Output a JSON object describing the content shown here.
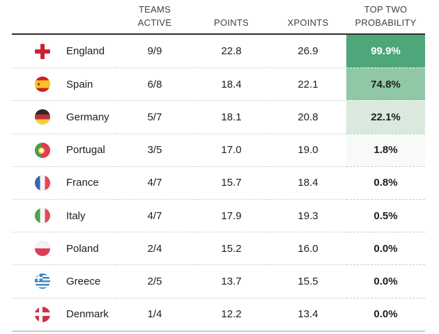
{
  "header": {
    "teams_active_line1": "TEAMS",
    "teams_active_line2": "ACTIVE",
    "points": "POINTS",
    "xpoints": "XPOINTS",
    "top_two_line1": "TOP TWO",
    "top_two_line2": "PROBABILITY"
  },
  "colors": {
    "header_rule": "#2d2d2d",
    "bottom_rule": "#c9c9c9",
    "row_separator": "#c8c8c8",
    "prob_scale_high": "#4da77a",
    "prob_scale_mid": "#90c7a4",
    "prob_scale_low": "#d9e9dd",
    "prob_scale_faint": "#f7faf7"
  },
  "chart_data": {
    "type": "table",
    "columns": [
      "",
      "TEAMS ACTIVE",
      "POINTS",
      "XPOINTS",
      "TOP TWO PROBABILITY"
    ],
    "rows": [
      {
        "country": "England",
        "flag": "england",
        "teams_active": "9/9",
        "points": "22.8",
        "xpoints": "26.9",
        "top_two_probability": "99.9%",
        "prob_bg": "#4da77a",
        "prob_fg": "#ffffff",
        "prob_sep": ""
      },
      {
        "country": "Spain",
        "flag": "spain",
        "teams_active": "6/8",
        "points": "18.4",
        "xpoints": "22.1",
        "top_two_probability": "74.8%",
        "prob_bg": "#90c7a4",
        "prob_fg": "#1d1d1d",
        "prob_sep": "rgba(255,255,255,0.85)"
      },
      {
        "country": "Germany",
        "flag": "germany",
        "teams_active": "5/7",
        "points": "18.1",
        "xpoints": "20.8",
        "top_two_probability": "22.1%",
        "prob_bg": "#d9e9dd",
        "prob_fg": "#1d1d1d",
        "prob_sep": "rgba(255,255,255,0.9)"
      },
      {
        "country": "Portugal",
        "flag": "portugal",
        "teams_active": "3/5",
        "points": "17.0",
        "xpoints": "19.0",
        "top_two_probability": "1.8%",
        "prob_bg": "#f7faf7",
        "prob_fg": "#1d1d1d",
        "prob_sep": "#c8c8c8"
      },
      {
        "country": "France",
        "flag": "france",
        "teams_active": "4/7",
        "points": "15.7",
        "xpoints": "18.4",
        "top_two_probability": "0.8%",
        "prob_bg": "#ffffff",
        "prob_fg": "#1d1d1d",
        "prob_sep": "#c8c8c8"
      },
      {
        "country": "Italy",
        "flag": "italy",
        "teams_active": "4/7",
        "points": "17.9",
        "xpoints": "19.3",
        "top_two_probability": "0.5%",
        "prob_bg": "#ffffff",
        "prob_fg": "#1d1d1d",
        "prob_sep": "#c8c8c8"
      },
      {
        "country": "Poland",
        "flag": "poland",
        "teams_active": "2/4",
        "points": "15.2",
        "xpoints": "16.0",
        "top_two_probability": "0.0%",
        "prob_bg": "#ffffff",
        "prob_fg": "#1d1d1d",
        "prob_sep": "#c8c8c8"
      },
      {
        "country": "Greece",
        "flag": "greece",
        "teams_active": "2/5",
        "points": "13.7",
        "xpoints": "15.5",
        "top_two_probability": "0.0%",
        "prob_bg": "#ffffff",
        "prob_fg": "#1d1d1d",
        "prob_sep": "#c8c8c8"
      },
      {
        "country": "Denmark",
        "flag": "denmark",
        "teams_active": "1/4",
        "points": "12.2",
        "xpoints": "13.4",
        "top_two_probability": "0.0%",
        "prob_bg": "#ffffff",
        "prob_fg": "#1d1d1d",
        "prob_sep": "#c8c8c8"
      }
    ]
  }
}
